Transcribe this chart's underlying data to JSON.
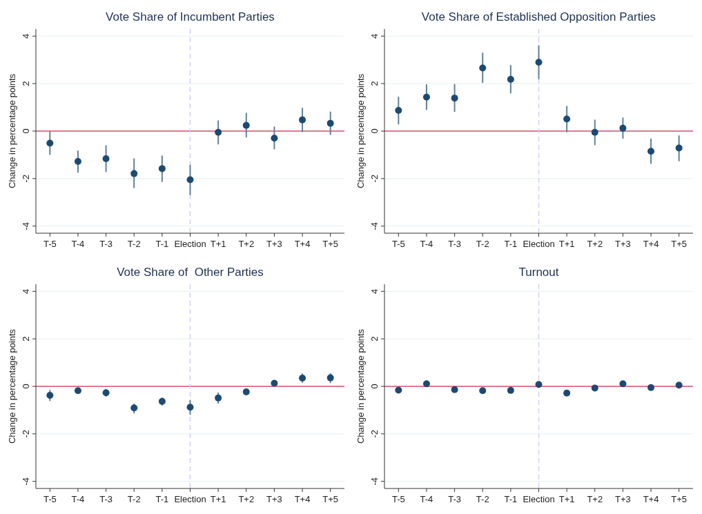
{
  "chart_data": [
    {
      "type": "scatter",
      "title": "Vote Share of Incumbent Parties",
      "ylabel": "Change in percentage points",
      "categories": [
        "T-5",
        "T-4",
        "T-3",
        "T-2",
        "T-1",
        "Election",
        "T+1",
        "T+2",
        "T+3",
        "T+4",
        "T+5"
      ],
      "ylim": [
        -4.3,
        4.3
      ],
      "yticks": [
        -4,
        -2,
        0,
        2,
        4
      ],
      "grid": "y",
      "marker": "circle",
      "series": [
        {
          "color": "#1b4a72",
          "values": [
            -0.51,
            -1.28,
            -1.16,
            -1.79,
            -1.58,
            -2.05,
            -0.05,
            0.24,
            -0.3,
            0.47,
            0.33
          ],
          "errors": [
            [
              -1.0,
              0.0
            ],
            [
              -1.75,
              -0.82
            ],
            [
              -1.72,
              -0.6
            ],
            [
              -2.4,
              -1.15
            ],
            [
              -2.14,
              -1.03
            ],
            [
              -2.7,
              -1.42
            ],
            [
              -0.56,
              0.45
            ],
            [
              -0.27,
              0.77
            ],
            [
              -0.77,
              0.19
            ],
            [
              -0.04,
              0.98
            ],
            [
              -0.16,
              0.82
            ]
          ]
        }
      ],
      "ref_lines": [
        {
          "axis": "y",
          "value": 0,
          "color": "#e2778f",
          "line_style": "solid"
        },
        {
          "axis": "x",
          "value": "Election",
          "color": "#cfcff5",
          "line_style": "dashed"
        }
      ]
    },
    {
      "type": "scatter",
      "title": "Vote Share of Established Opposition Parties",
      "ylabel": "Change in percentage points",
      "categories": [
        "T-5",
        "T-4",
        "T-3",
        "T-2",
        "T-1",
        "Election",
        "T+1",
        "T+2",
        "T+3",
        "T+4",
        "T+5"
      ],
      "ylim": [
        -4.3,
        4.3
      ],
      "yticks": [
        -4,
        -2,
        0,
        2,
        4
      ],
      "grid": "y",
      "marker": "circle",
      "series": [
        {
          "color": "#1b4a72",
          "values": [
            0.87,
            1.43,
            1.39,
            2.66,
            2.18,
            2.9,
            0.51,
            -0.05,
            0.12,
            -0.85,
            -0.71
          ],
          "errors": [
            [
              0.28,
              1.45
            ],
            [
              0.89,
              1.97
            ],
            [
              0.81,
              1.98
            ],
            [
              2.03,
              3.3
            ],
            [
              1.59,
              2.78
            ],
            [
              2.19,
              3.61
            ],
            [
              -0.05,
              1.06
            ],
            [
              -0.59,
              0.48
            ],
            [
              -0.32,
              0.57
            ],
            [
              -1.38,
              -0.32
            ],
            [
              -1.27,
              -0.18
            ]
          ]
        }
      ],
      "ref_lines": [
        {
          "axis": "y",
          "value": 0,
          "color": "#e2778f",
          "line_style": "solid"
        },
        {
          "axis": "x",
          "value": "Election",
          "color": "#cfcff5",
          "line_style": "dashed"
        }
      ]
    },
    {
      "type": "scatter",
      "title": "Vote Share of  Other Parties",
      "ylabel": "Change in percentage points",
      "categories": [
        "T-5",
        "T-4",
        "T-3",
        "T-2",
        "T-1",
        "Election",
        "T+1",
        "T+2",
        "T+3",
        "T+4",
        "T+5"
      ],
      "ylim": [
        -4.3,
        4.3
      ],
      "yticks": [
        -4,
        -2,
        0,
        2,
        4
      ],
      "grid": "y",
      "marker": "circle",
      "series": [
        {
          "color": "#1b4a72",
          "values": [
            -0.38,
            -0.18,
            -0.27,
            -0.91,
            -0.63,
            -0.88,
            -0.49,
            -0.23,
            0.13,
            0.35,
            0.36
          ],
          "errors": [
            [
              -0.62,
              -0.15
            ],
            [
              -0.32,
              -0.07
            ],
            [
              -0.43,
              -0.11
            ],
            [
              -1.14,
              -0.73
            ],
            [
              -0.81,
              -0.47
            ],
            [
              -1.19,
              -0.57
            ],
            [
              -0.73,
              -0.26
            ],
            [
              -0.37,
              -0.09
            ],
            [
              0.04,
              0.24
            ],
            [
              0.15,
              0.54
            ],
            [
              0.14,
              0.55
            ]
          ]
        }
      ],
      "ref_lines": [
        {
          "axis": "y",
          "value": 0,
          "color": "#e2778f",
          "line_style": "solid"
        },
        {
          "axis": "x",
          "value": "Election",
          "color": "#cfcff5",
          "line_style": "dashed"
        }
      ]
    },
    {
      "type": "scatter",
      "title": "Turnout",
      "ylabel": "Change in percentage points",
      "categories": [
        "T-5",
        "T-4",
        "T-3",
        "T-2",
        "T-1",
        "Election",
        "T+1",
        "T+2",
        "T+3",
        "T+4",
        "T+5"
      ],
      "ylim": [
        -4.3,
        4.3
      ],
      "yticks": [
        -4,
        -2,
        0,
        2,
        4
      ],
      "grid": "y",
      "marker": "circle",
      "series": [
        {
          "color": "#1b4a72",
          "values": [
            -0.16,
            0.11,
            -0.14,
            -0.18,
            -0.17,
            0.08,
            -0.28,
            -0.07,
            0.11,
            -0.05,
            0.05
          ]
        }
      ],
      "ref_lines": [
        {
          "axis": "y",
          "value": 0,
          "color": "#e2778f",
          "line_style": "solid"
        },
        {
          "axis": "x",
          "value": "Election",
          "color": "#cfcff5",
          "line_style": "dashed"
        }
      ]
    }
  ]
}
